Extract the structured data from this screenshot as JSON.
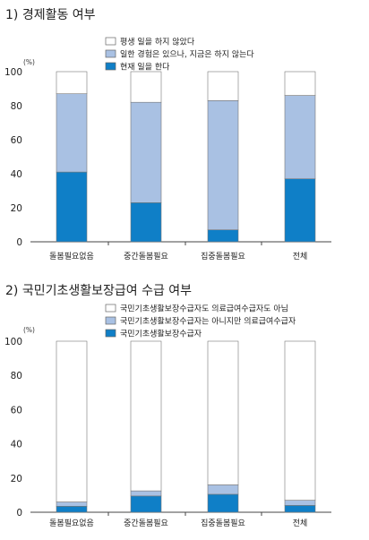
{
  "charts": [
    {
      "title": "1) 경제활동 여부"
    },
    {
      "title": "2) 국민기초생활보장급여 수급 여부"
    }
  ],
  "chart_data": [
    {
      "type": "bar",
      "stacked": true,
      "title": "1) 경제활동 여부",
      "ylabel": "(%)",
      "categories": [
        "돌봄필요없음",
        "중간돌봄필요",
        "집중돌봄필요",
        "전체"
      ],
      "ylim": [
        0,
        100
      ],
      "yticks": [
        0,
        20,
        40,
        60,
        80,
        100
      ],
      "legend_position": "top",
      "series": [
        {
          "name": "현재 일을 한다",
          "color": "#0f7fc7",
          "values": [
            41,
            23,
            7,
            37
          ]
        },
        {
          "name": "일한 경험은 있으나, 지금은 하지 않는다",
          "color": "#a9c1e3",
          "values": [
            46,
            59,
            76,
            49
          ]
        },
        {
          "name": "평생 일을 하지 않았다",
          "color": "#ffffff",
          "values": [
            13,
            18,
            17,
            14
          ]
        }
      ],
      "legend_order": [
        2,
        1,
        0
      ]
    },
    {
      "type": "bar",
      "stacked": true,
      "title": "2) 국민기초생활보장급여 수급 여부",
      "ylabel": "(%)",
      "categories": [
        "돌봄필요없음",
        "중간돌봄필요",
        "집중돌봄필요",
        "전체"
      ],
      "ylim": [
        0,
        100
      ],
      "yticks": [
        0,
        20,
        40,
        60,
        80,
        100
      ],
      "legend_position": "top",
      "series": [
        {
          "name": "국민기초생활보장수급자",
          "color": "#0f7fc7",
          "values": [
            3.5,
            9.5,
            10.5,
            4
          ]
        },
        {
          "name": "국민기초생활보장수급자는 아니지만 의료급여수급자",
          "color": "#a9c1e3",
          "values": [
            2.5,
            3,
            5.5,
            3
          ]
        },
        {
          "name": "국민기초생활보장수급자도 의료급여수급자도 아님",
          "color": "#ffffff",
          "values": [
            94,
            87.5,
            84,
            93
          ]
        }
      ],
      "legend_order": [
        2,
        1,
        0
      ]
    }
  ]
}
